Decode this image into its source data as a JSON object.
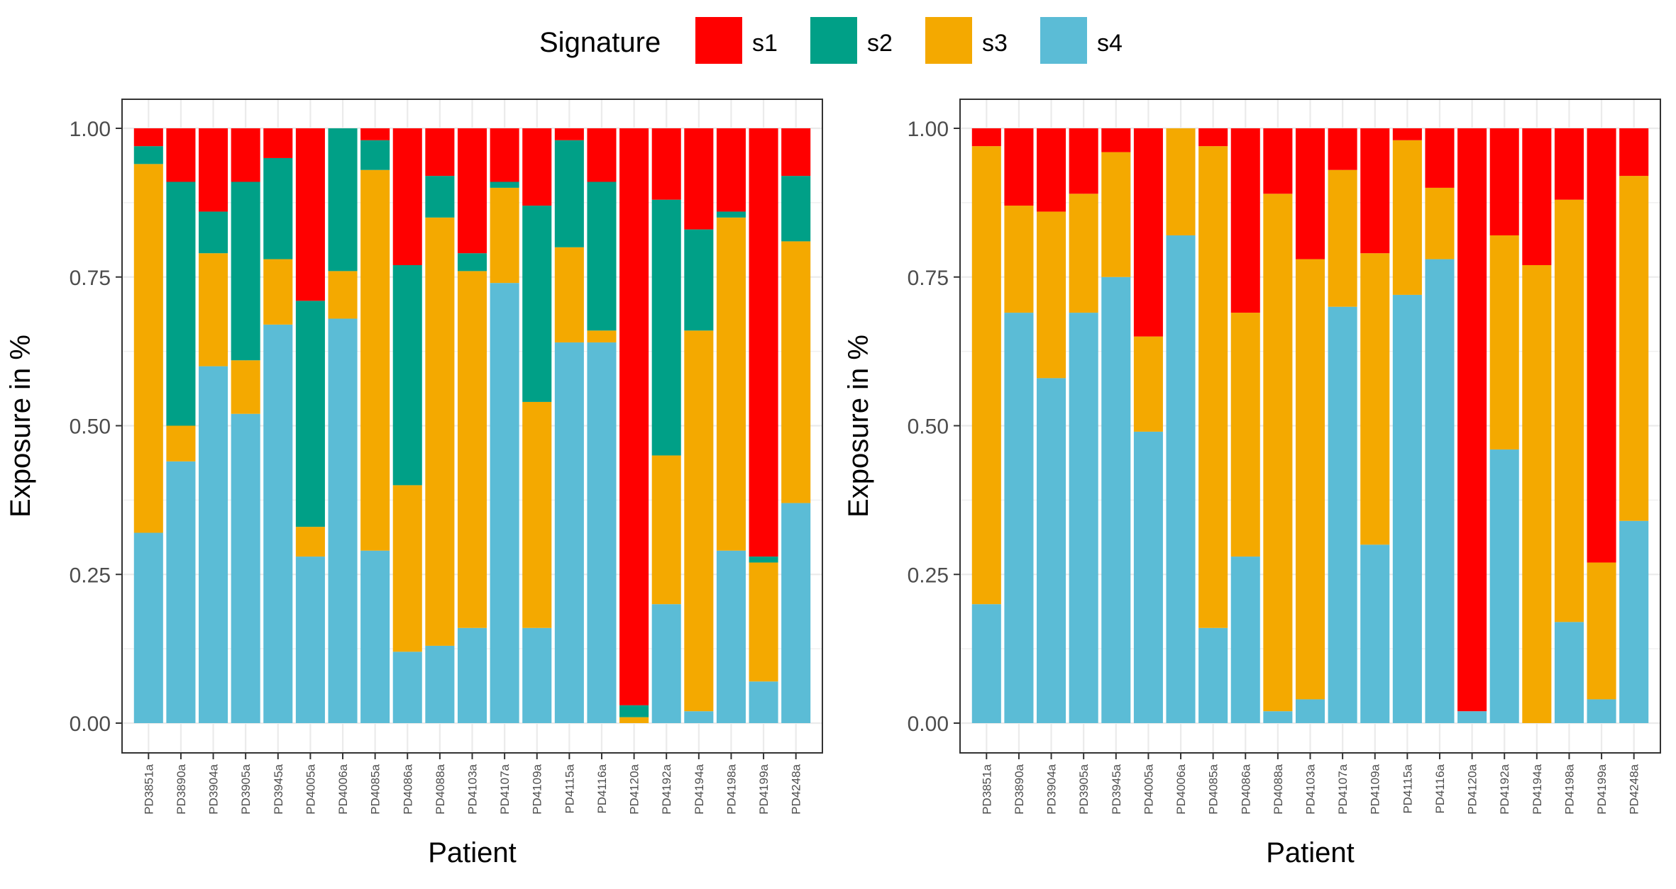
{
  "legend": {
    "title": "Signature",
    "items": [
      {
        "key": "s1",
        "label": "s1",
        "color": "#FF0000"
      },
      {
        "key": "s2",
        "label": "s2",
        "color": "#00A087"
      },
      {
        "key": "s3",
        "label": "s3",
        "color": "#F4A900"
      },
      {
        "key": "s4",
        "label": "s4",
        "color": "#5BBCD6"
      }
    ]
  },
  "chart_data": [
    {
      "type": "bar",
      "stacked": true,
      "xlabel": "Patient",
      "ylabel": "Exposure in %",
      "ylim": [
        0,
        1
      ],
      "yticks": [
        "0.00",
        "0.25",
        "0.50",
        "0.75",
        "1.00"
      ],
      "categories": [
        "PD3851a",
        "PD3890a",
        "PD3904a",
        "PD3905a",
        "PD3945a",
        "PD4005a",
        "PD4006a",
        "PD4085a",
        "PD4086a",
        "PD4088a",
        "PD4103a",
        "PD4107a",
        "PD4109a",
        "PD4115a",
        "PD4116a",
        "PD4120a",
        "PD4192a",
        "PD4194a",
        "PD4198a",
        "PD4199a",
        "PD4248a"
      ],
      "series": [
        {
          "name": "s4",
          "values": [
            0.32,
            0.44,
            0.6,
            0.52,
            0.67,
            0.28,
            0.68,
            0.29,
            0.12,
            0.13,
            0.16,
            0.74,
            0.16,
            0.64,
            0.64,
            0.0,
            0.2,
            0.02,
            0.29,
            0.07,
            0.37
          ]
        },
        {
          "name": "s3",
          "values": [
            0.62,
            0.06,
            0.19,
            0.09,
            0.11,
            0.05,
            0.08,
            0.64,
            0.28,
            0.72,
            0.6,
            0.16,
            0.38,
            0.16,
            0.02,
            0.01,
            0.25,
            0.64,
            0.56,
            0.2,
            0.44
          ]
        },
        {
          "name": "s2",
          "values": [
            0.03,
            0.41,
            0.07,
            0.3,
            0.17,
            0.38,
            0.24,
            0.05,
            0.37,
            0.07,
            0.03,
            0.01,
            0.33,
            0.18,
            0.25,
            0.02,
            0.43,
            0.17,
            0.01,
            0.01,
            0.11
          ]
        },
        {
          "name": "s1",
          "values": [
            0.03,
            0.09,
            0.14,
            0.09,
            0.05,
            0.29,
            0.0,
            0.02,
            0.23,
            0.08,
            0.21,
            0.09,
            0.13,
            0.02,
            0.09,
            0.97,
            0.12,
            0.17,
            0.14,
            0.72,
            0.08
          ]
        }
      ]
    },
    {
      "type": "bar",
      "stacked": true,
      "xlabel": "Patient",
      "ylabel": "Exposure in %",
      "ylim": [
        0,
        1
      ],
      "yticks": [
        "0.00",
        "0.25",
        "0.50",
        "0.75",
        "1.00"
      ],
      "categories": [
        "PD3851a",
        "PD3890a",
        "PD3904a",
        "PD3905a",
        "PD3945a",
        "PD4005a",
        "PD4006a",
        "PD4085a",
        "PD4086a",
        "PD4088a",
        "PD4103a",
        "PD4107a",
        "PD4109a",
        "PD4115a",
        "PD4116a",
        "PD4120a",
        "PD4192a",
        "PD4194a",
        "PD4198a",
        "PD4199a",
        "PD4248a"
      ],
      "series": [
        {
          "name": "s4",
          "values": [
            0.2,
            0.69,
            0.58,
            0.69,
            0.75,
            0.49,
            0.82,
            0.16,
            0.28,
            0.02,
            0.04,
            0.7,
            0.3,
            0.72,
            0.78,
            0.02,
            0.46,
            0.0,
            0.17,
            0.04,
            0.34
          ]
        },
        {
          "name": "s3",
          "values": [
            0.77,
            0.18,
            0.28,
            0.2,
            0.21,
            0.16,
            0.18,
            0.81,
            0.41,
            0.87,
            0.74,
            0.23,
            0.49,
            0.26,
            0.12,
            0.0,
            0.36,
            0.77,
            0.71,
            0.23,
            0.58
          ]
        },
        {
          "name": "s2",
          "values": [
            0,
            0,
            0,
            0,
            0,
            0,
            0,
            0,
            0,
            0,
            0,
            0,
            0,
            0,
            0,
            0,
            0,
            0,
            0,
            0,
            0
          ]
        },
        {
          "name": "s1",
          "values": [
            0.03,
            0.13,
            0.14,
            0.11,
            0.04,
            0.35,
            0.0,
            0.03,
            0.31,
            0.11,
            0.22,
            0.07,
            0.21,
            0.02,
            0.1,
            0.98,
            0.18,
            0.23,
            0.12,
            0.73,
            0.08
          ]
        }
      ]
    }
  ]
}
